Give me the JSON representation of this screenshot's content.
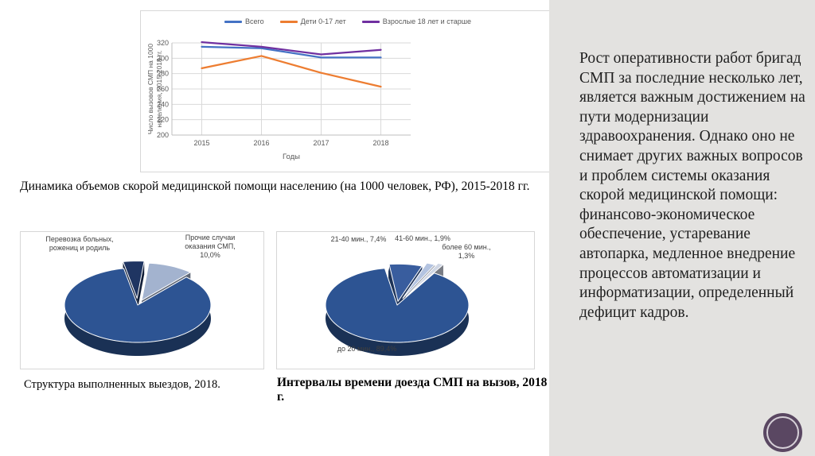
{
  "sidebar": {
    "text": "Рост оперативности работ бригад СМП за последние несколько лет, является важным достижением на пути модернизации здравоохранения. Однако оно не снимает других важных вопросов и проблем системы оказания скорой медицинской помощи: финансово-экономическое обеспечение, устаревание автопарка, медленное внедрение процессов автоматизации и информатизации, определенный дефицит кадров.",
    "bg_color": "#e3e2e0",
    "text_color": "#1f1f1f"
  },
  "logo": {
    "color": "#5a4762",
    "ring_color": "#d6d0d8"
  },
  "captions": {
    "line_chart": "Динамика объемов скорой медицинской помощи населению (на 1000 человек, РФ), 2015-2018 гг.",
    "pie1": "Структура выполненных выездов, 2018.",
    "pie2": "Интервалы времени доезда СМП на вызов, 2018 г."
  },
  "colors": {
    "grid": "#d9d9d9",
    "axis": "#bfbfbf",
    "tick_text": "#595959",
    "pie_main_blue": "#2d5493",
    "pie_navy": "#1f3562",
    "pie_light_blue": "#a3b3cf"
  },
  "chart_data": [
    {
      "type": "line",
      "x_categories": [
        "2015",
        "2016",
        "2017",
        "2018"
      ],
      "xlabel": "Годы",
      "ylabel": "Число вызовов СМП на 1000 населения, 2015-2018 гг.",
      "ylim": [
        200,
        320
      ],
      "ytick_step": 20,
      "grid": true,
      "legend_position": "top",
      "series": [
        {
          "name": "Всего",
          "color": "#4472c4",
          "values": [
            315,
            313,
            301,
            301
          ]
        },
        {
          "name": "Дети 0-17 лет",
          "color": "#ed7d31",
          "values": [
            287,
            303,
            281,
            263
          ]
        },
        {
          "name": "Взрослые 18 лет и старше",
          "color": "#7030a0",
          "values": [
            321,
            315,
            305,
            311
          ]
        }
      ]
    },
    {
      "type": "pie",
      "title": "Структура выполненных выездов, 2018.",
      "start_angle": 101,
      "clockwise": true,
      "slices": [
        {
          "label": "Перевозка больных, рожениц и родиль",
          "value": 4.6,
          "color": "#1f3562",
          "explode": 0.18
        },
        {
          "label": "Прочие случаи оказания СМП, 10,0%",
          "value": 10.0,
          "color": "#a3b3cf",
          "explode": 0.14
        },
        {
          "label": "",
          "value": 85.4,
          "color": "#2d5493",
          "explode": 0
        }
      ]
    },
    {
      "type": "pie",
      "title": "Интервалы времени доезда СМП на вызов, 2018 г.",
      "start_angle": 97,
      "clockwise": true,
      "slices": [
        {
          "label": "21-40 мин., 7,4%",
          "value": 7.4,
          "color": "#395d9e",
          "explode": 0.1
        },
        {
          "label": "41-60 мин., 1,9%",
          "value": 1.9,
          "color": "#b3c3e0",
          "explode": 0.2
        },
        {
          "label": "более 60 мин., 1,3%",
          "value": 1.3,
          "color": "#cfd6e4",
          "explode": 0.26
        },
        {
          "label": "до 20 мин., 89,4%",
          "value": 89.4,
          "color": "#2d5493",
          "explode": 0
        }
      ]
    }
  ]
}
